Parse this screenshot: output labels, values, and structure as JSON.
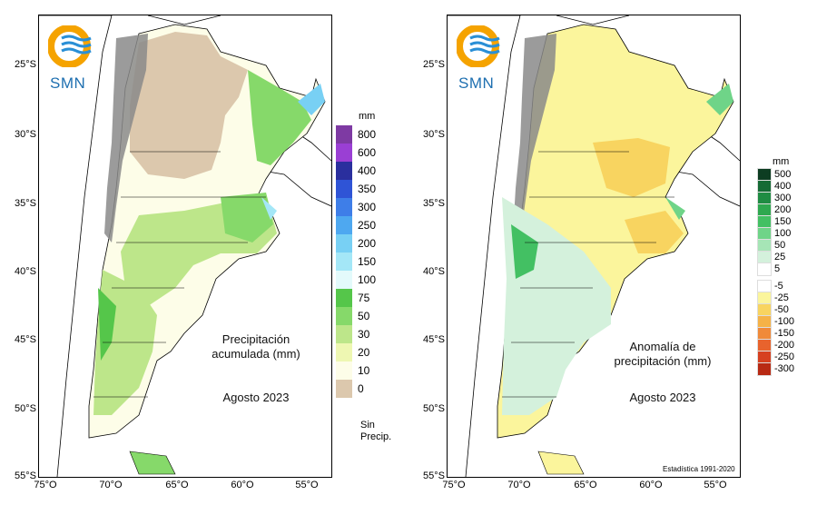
{
  "logo": {
    "text": "SMN"
  },
  "lat_labels": [
    "25°S",
    "30°S",
    "35°S",
    "40°S",
    "45°S",
    "50°S",
    "55°S"
  ],
  "lon_labels": [
    "75°O",
    "70°O",
    "65°O",
    "60°O",
    "55°O"
  ],
  "left_map": {
    "title_line1": "Precipitación",
    "title_line2": "acumulada (mm)",
    "date": "Agosto 2023",
    "legend_unit": "mm",
    "legend": [
      {
        "label": "800",
        "color": "#7e3aa3"
      },
      {
        "label": "600",
        "color": "#9a3fd4"
      },
      {
        "label": "400",
        "color": "#2a2f9e"
      },
      {
        "label": "350",
        "color": "#2f54d6"
      },
      {
        "label": "300",
        "color": "#3e7ee8"
      },
      {
        "label": "250",
        "color": "#4ea8f0"
      },
      {
        "label": "200",
        "color": "#78d0f4"
      },
      {
        "label": "150",
        "color": "#a4e7f7"
      },
      {
        "label": "100",
        "color": "#e3fafb"
      },
      {
        "label": "75",
        "color": "#55c64a"
      },
      {
        "label": "50",
        "color": "#86d96a"
      },
      {
        "label": "30",
        "color": "#bde68a"
      },
      {
        "label": "20",
        "color": "#eef7b2"
      },
      {
        "label": "10",
        "color": "#fdfde8"
      },
      {
        "label": "0",
        "color": "#dcc8ad"
      }
    ],
    "no_precip_label_1": "Sin",
    "no_precip_label_2": "Precip."
  },
  "right_map": {
    "title_line1": "Anomalía de",
    "title_line2": "precipitación (mm)",
    "date": "Agosto 2023",
    "footnote": "Estadística 1991-2020",
    "legend_unit": "mm",
    "legend_positive": [
      {
        "label": "500",
        "color": "#0d3d22"
      },
      {
        "label": "400",
        "color": "#156b35"
      },
      {
        "label": "300",
        "color": "#1f8c43"
      },
      {
        "label": "200",
        "color": "#2ea84f"
      },
      {
        "label": "150",
        "color": "#43c063"
      },
      {
        "label": "100",
        "color": "#6fd488"
      },
      {
        "label": "50",
        "color": "#a6e5b6"
      },
      {
        "label": "25",
        "color": "#d4f1dc"
      },
      {
        "label": "5",
        "color": "#ffffff"
      }
    ],
    "legend_negative": [
      {
        "label": "-5",
        "color": "#ffffff"
      },
      {
        "label": "-25",
        "color": "#fbf59c"
      },
      {
        "label": "-50",
        "color": "#f8d460"
      },
      {
        "label": "-100",
        "color": "#f5b247"
      },
      {
        "label": "-150",
        "color": "#f08a3a"
      },
      {
        "label": "-200",
        "color": "#e8632d"
      },
      {
        "label": "-250",
        "color": "#d64020"
      },
      {
        "label": "-300",
        "color": "#b82a14"
      }
    ]
  }
}
